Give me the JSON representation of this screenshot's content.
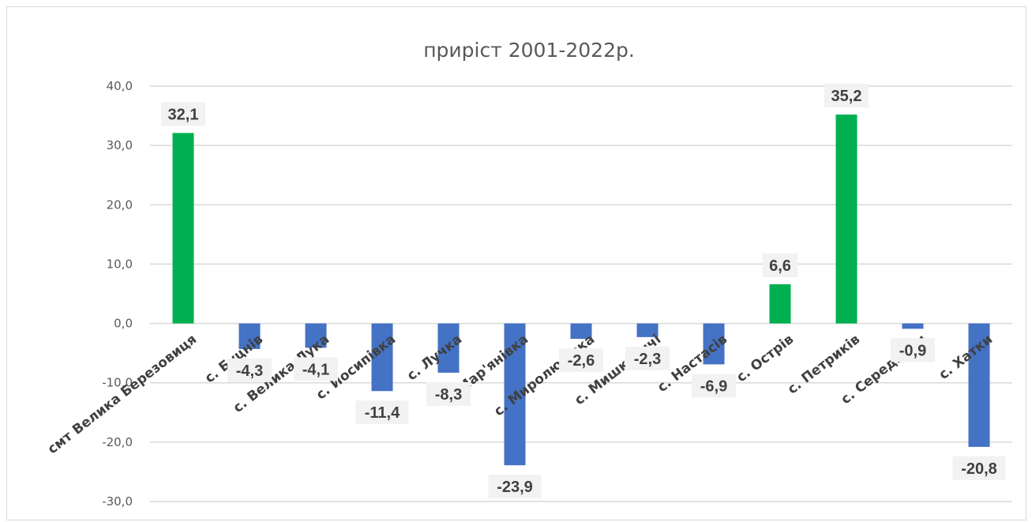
{
  "chart_data": {
    "type": "bar",
    "title": "приріст 2001-2022р.",
    "xlabel": "",
    "ylabel": "",
    "ylim": [
      -30,
      40
    ],
    "yticks": [
      "40,0",
      "30,0",
      "20,0",
      "10,0",
      "0,0",
      "-10,0",
      "-20,0",
      "-30,0"
    ],
    "ytick_values": [
      40,
      30,
      20,
      10,
      0,
      -10,
      -20,
      -30
    ],
    "grid": true,
    "legend": "none",
    "categories": [
      "смт Велика Березовиця",
      "с. Буцнів",
      "с. Велика Лука",
      "с. Йосипівка",
      "с. Лучка",
      "с. Мар'янівка",
      "с. Миролюбівка",
      "с. Мишковичі",
      "с. Настасів",
      "с. Острів",
      "с. Петриків",
      "с. Серединки",
      "с. Хатки"
    ],
    "values": [
      32.1,
      -4.3,
      -4.1,
      -11.4,
      -8.3,
      -23.9,
      -2.6,
      -2.3,
      -6.9,
      6.6,
      35.2,
      -0.9,
      -20.8
    ],
    "labels": [
      "32,1",
      "-4,3",
      "-4,1",
      "-11,4",
      "-8,3",
      "-23,9",
      "-2,6",
      "-2,3",
      "-6,9",
      "6,6",
      "35,2",
      "-0,9",
      "-20,8"
    ],
    "colors": {
      "positive": "#00b050",
      "negative": "#4472c4",
      "grid": "#d9d9d9",
      "label_box": "#f2f2f2"
    }
  }
}
